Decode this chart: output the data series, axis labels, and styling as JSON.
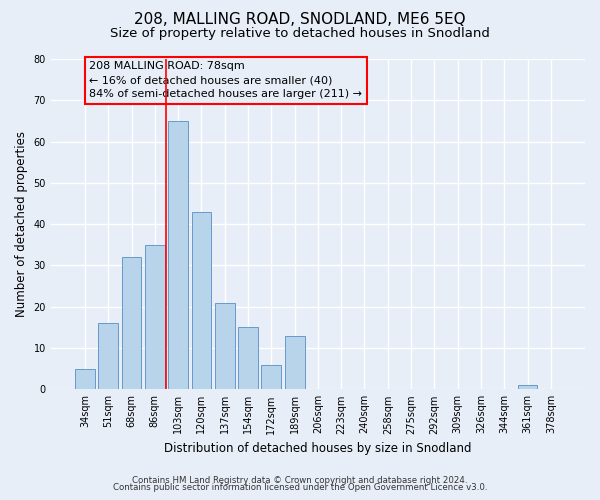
{
  "title": "208, MALLING ROAD, SNODLAND, ME6 5EQ",
  "subtitle": "Size of property relative to detached houses in Snodland",
  "xlabel": "Distribution of detached houses by size in Snodland",
  "ylabel": "Number of detached properties",
  "footnote1": "Contains HM Land Registry data © Crown copyright and database right 2024.",
  "footnote2": "Contains public sector information licensed under the Open Government Licence v3.0.",
  "bar_labels": [
    "34sqm",
    "51sqm",
    "68sqm",
    "86sqm",
    "103sqm",
    "120sqm",
    "137sqm",
    "154sqm",
    "172sqm",
    "189sqm",
    "206sqm",
    "223sqm",
    "240sqm",
    "258sqm",
    "275sqm",
    "292sqm",
    "309sqm",
    "326sqm",
    "344sqm",
    "361sqm",
    "378sqm"
  ],
  "bar_values": [
    5,
    16,
    32,
    35,
    65,
    43,
    21,
    15,
    6,
    13,
    0,
    0,
    0,
    0,
    0,
    0,
    0,
    0,
    0,
    1,
    0
  ],
  "bar_color": "#b8d4ea",
  "bar_edge_color": "#6699cc",
  "ylim": [
    0,
    80
  ],
  "yticks": [
    0,
    10,
    20,
    30,
    40,
    50,
    60,
    70,
    80
  ],
  "annotation_title": "208 MALLING ROAD: 78sqm",
  "annotation_line1": "← 16% of detached houses are smaller (40)",
  "annotation_line2": "84% of semi-detached houses are larger (211) →",
  "vline_x": 3.5,
  "background_color": "#e8eef8",
  "plot_bg_color": "#e8eef8",
  "grid_color": "#ffffff",
  "title_fontsize": 11,
  "subtitle_fontsize": 9.5,
  "annotation_fontsize": 8,
  "tick_fontsize": 7,
  "ylabel_fontsize": 8.5,
  "xlabel_fontsize": 8.5,
  "footnote_fontsize": 6.2
}
